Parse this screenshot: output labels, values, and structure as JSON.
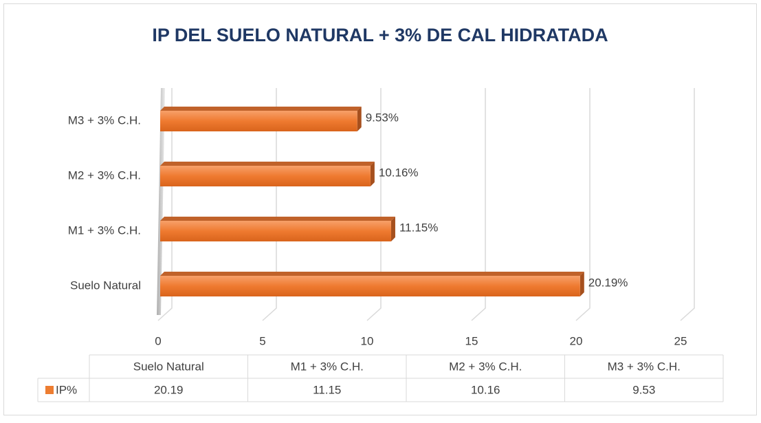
{
  "chart_data": {
    "type": "bar",
    "orientation": "horizontal",
    "title": "IP DEL SUELO NATURAL + 3% DE CAL HIDRATADA",
    "categories": [
      "Suelo Natural",
      "M1 + 3% C.H.",
      "M2 + 3% C.H.",
      "M3 + 3% C.H."
    ],
    "series": [
      {
        "name": "IP%",
        "color": "#ed7d31",
        "values": [
          20.19,
          11.15,
          10.16,
          9.53
        ],
        "value_labels": [
          "20.19%",
          "11.15%",
          "10.16%",
          "9.53%"
        ]
      }
    ],
    "xlim": [
      0,
      25
    ],
    "xticks": [
      0,
      5,
      10,
      15,
      20,
      25
    ],
    "grid": true,
    "data_table": true
  }
}
